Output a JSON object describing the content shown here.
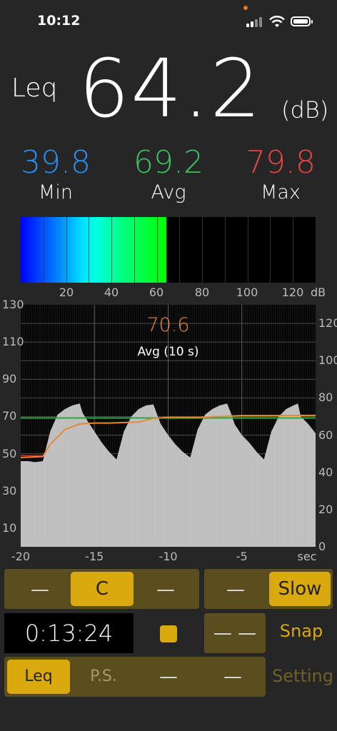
{
  "status": {
    "time": "10:12"
  },
  "leq": {
    "label": "Leq",
    "value": "64.2",
    "unit": "(dB)"
  },
  "stats": {
    "min": {
      "value": "39.8",
      "label": "Min",
      "color": "#2b8ff0"
    },
    "avg": {
      "value": "69.2",
      "label": "Avg",
      "color": "#3cc060"
    },
    "max": {
      "value": "79.8",
      "label": "Max",
      "color": "#e0454a"
    }
  },
  "meter": {
    "level": 64.2,
    "range": [
      0,
      130
    ],
    "ticks": [
      "20",
      "40",
      "60",
      "80",
      "100",
      "120"
    ],
    "unit": "dB"
  },
  "chart_data": {
    "type": "area",
    "x_range": [
      -20,
      0
    ],
    "ylim": [
      0,
      130
    ],
    "yticks_left": [
      "130",
      "110",
      "90",
      "70",
      "50",
      "30",
      "10"
    ],
    "yticks_right": [
      "120",
      "100",
      "80",
      "60",
      "40",
      "20",
      "0"
    ],
    "xticks": [
      "-20",
      "-15",
      "-10",
      "-5"
    ],
    "xunit": "sec",
    "readout_value": "70.6",
    "readout_label": "Avg (10 s)",
    "level_series": {
      "x": [
        -20,
        -19.5,
        -19,
        -18.5,
        -18,
        -17.5,
        -17,
        -16.5,
        -16,
        -15.8,
        -15.5,
        -15,
        -14.5,
        -14,
        -13.5,
        -13,
        -12.5,
        -12,
        -11.5,
        -11,
        -10.7,
        -10.5,
        -10,
        -9.5,
        -9,
        -8.5,
        -8,
        -7.5,
        -7,
        -6.5,
        -6,
        -5.7,
        -5.5,
        -5,
        -4.5,
        -4,
        -3.5,
        -3,
        -2.5,
        -2,
        -1.5,
        -1.2,
        -1,
        -0.5,
        0
      ],
      "y": [
        46,
        46,
        45.5,
        46,
        62,
        71,
        74,
        76,
        77,
        72,
        68,
        62,
        56,
        51,
        47,
        62,
        70,
        74,
        76,
        76.5,
        70,
        66,
        60,
        55,
        51,
        48,
        63,
        71,
        74,
        76,
        77,
        71,
        66,
        60,
        56,
        51,
        47,
        62,
        70,
        74,
        76,
        77,
        70,
        66,
        61
      ]
    },
    "avg_series": {
      "x": [
        -20,
        -18.5,
        -18,
        -17,
        -16,
        -15,
        -14,
        -12,
        -11,
        -10,
        -8,
        -5,
        -2,
        0
      ],
      "y": [
        48,
        48.5,
        55,
        63,
        66,
        66.5,
        66.5,
        67,
        69,
        69.5,
        69.5,
        70.5,
        70.5,
        70.6
      ],
      "color": "#e88a30"
    },
    "reference_level": {
      "y": 69.2,
      "color": "#2aa84a"
    }
  },
  "controls": {
    "weighting": {
      "left": "—",
      "selected": "C",
      "right": "—"
    },
    "response": {
      "left": "—",
      "selected": "Slow"
    },
    "timer": "0:13:24",
    "snap_placeholder": "— —",
    "snap_label": "Snap",
    "modes": {
      "selected": "Leq",
      "ps": "P.S.",
      "m3": "—",
      "m4": "—"
    },
    "setting_label": "Setting"
  }
}
